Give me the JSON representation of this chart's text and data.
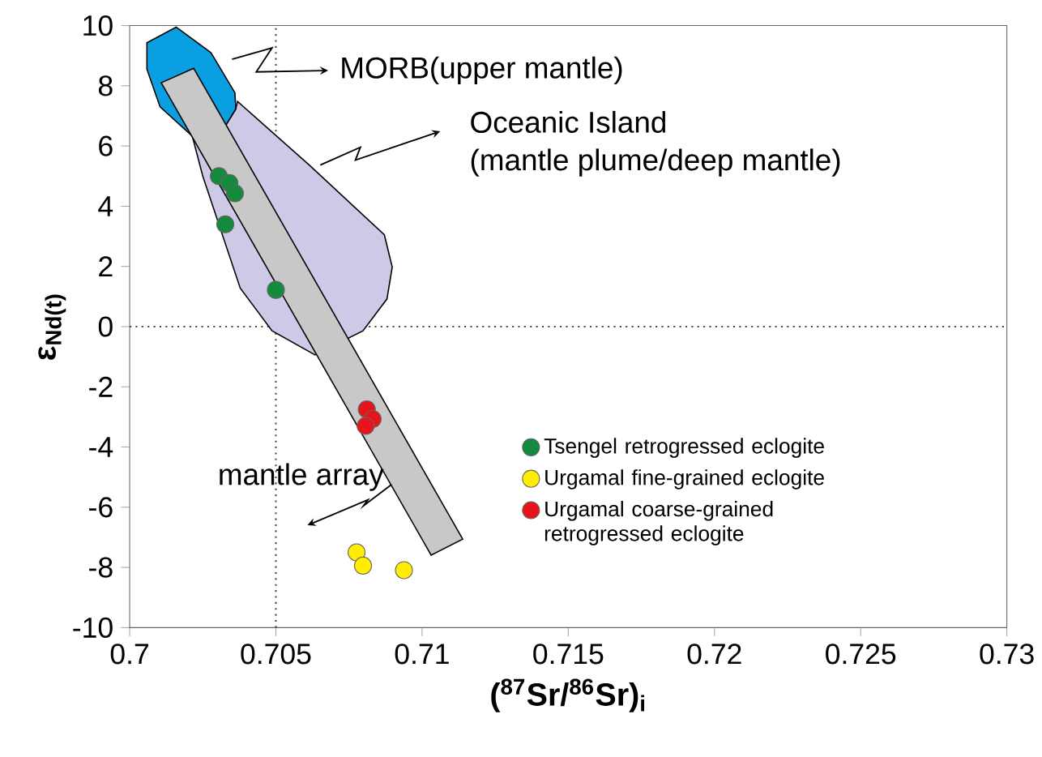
{
  "chart_data": {
    "type": "scatter",
    "xlabel": "($^{87}$Sr/$^{86}$Sr)$_{i}$",
    "ylabel": "ε$_{Nd(t)}$",
    "xlim": [
      0.7,
      0.73
    ],
    "ylim": [
      -10,
      10
    ],
    "xticks": [
      0.7,
      0.705,
      0.71,
      0.715,
      0.72,
      0.725,
      0.73
    ],
    "yticks": [
      -10,
      -8,
      -6,
      -4,
      -2,
      0,
      2,
      4,
      6,
      8,
      10
    ],
    "grid": false,
    "legend": "bottom right",
    "ref_lines": [
      {
        "axis": "x",
        "value": 0.705,
        "line_style": "dotted"
      },
      {
        "axis": "y",
        "value": 0,
        "line_style": "dotted"
      }
    ],
    "annotations": [
      "MORB(upper mantle)",
      "Oceanic Island",
      "(mantle plume/deep mantle)",
      "mantle array"
    ],
    "series": [
      {
        "type": "area",
        "marker": "none",
        "color": "#cdc9e6",
        "x": [
          0.70214,
          0.7025,
          0.70378,
          0.70487,
          0.70634,
          0.70798,
          0.7088,
          0.70898,
          0.70871,
          0.70615,
          0.70369,
          0.70363,
          0.70323
        ],
        "values": [
          6.33,
          5.0,
          1.28,
          -0.14,
          -0.94,
          -0.14,
          0.92,
          1.98,
          3.05,
          5.36,
          7.48,
          7.23,
          6.6
        ]
      },
      {
        "type": "area",
        "marker": "none",
        "color": "#0a9fe0",
        "x": [
          0.70059,
          0.70059,
          0.70159,
          0.70278,
          0.7036,
          0.70363,
          0.70323,
          0.70214,
          0.70104
        ],
        "values": [
          8.55,
          9.43,
          9.95,
          9.1,
          7.77,
          7.23,
          6.6,
          6.33,
          7.3
        ]
      },
      {
        "type": "area",
        "marker": "none",
        "color": "#c8c8c8",
        "x": [
          0.70108,
          0.70219,
          0.71139,
          0.71031
        ],
        "values": [
          8.1,
          8.58,
          -7.06,
          -7.59
        ]
      },
      {
        "name": "Tsengel retrogressed eclogite",
        "marker": "circle",
        "color": "#138a3c",
        "x": [
          0.70305,
          0.70341,
          0.7036,
          0.70327,
          0.705
        ],
        "values": [
          5.0,
          4.77,
          4.43,
          3.4,
          1.22
        ]
      },
      {
        "name": "Urgamal  fine-grained eclogite",
        "marker": "circle",
        "color": "#ffee00",
        "x": [
          0.70776,
          0.70798,
          0.70938
        ],
        "values": [
          -7.5,
          -7.94,
          -8.09
        ]
      },
      {
        "name": "Urgamal coarse-grained retrogressed eclogite",
        "marker": "circle",
        "color": "#e8141c",
        "x": [
          0.70811,
          0.70831,
          0.70807
        ],
        "values": [
          -2.75,
          -3.07,
          -3.3
        ]
      }
    ]
  }
}
